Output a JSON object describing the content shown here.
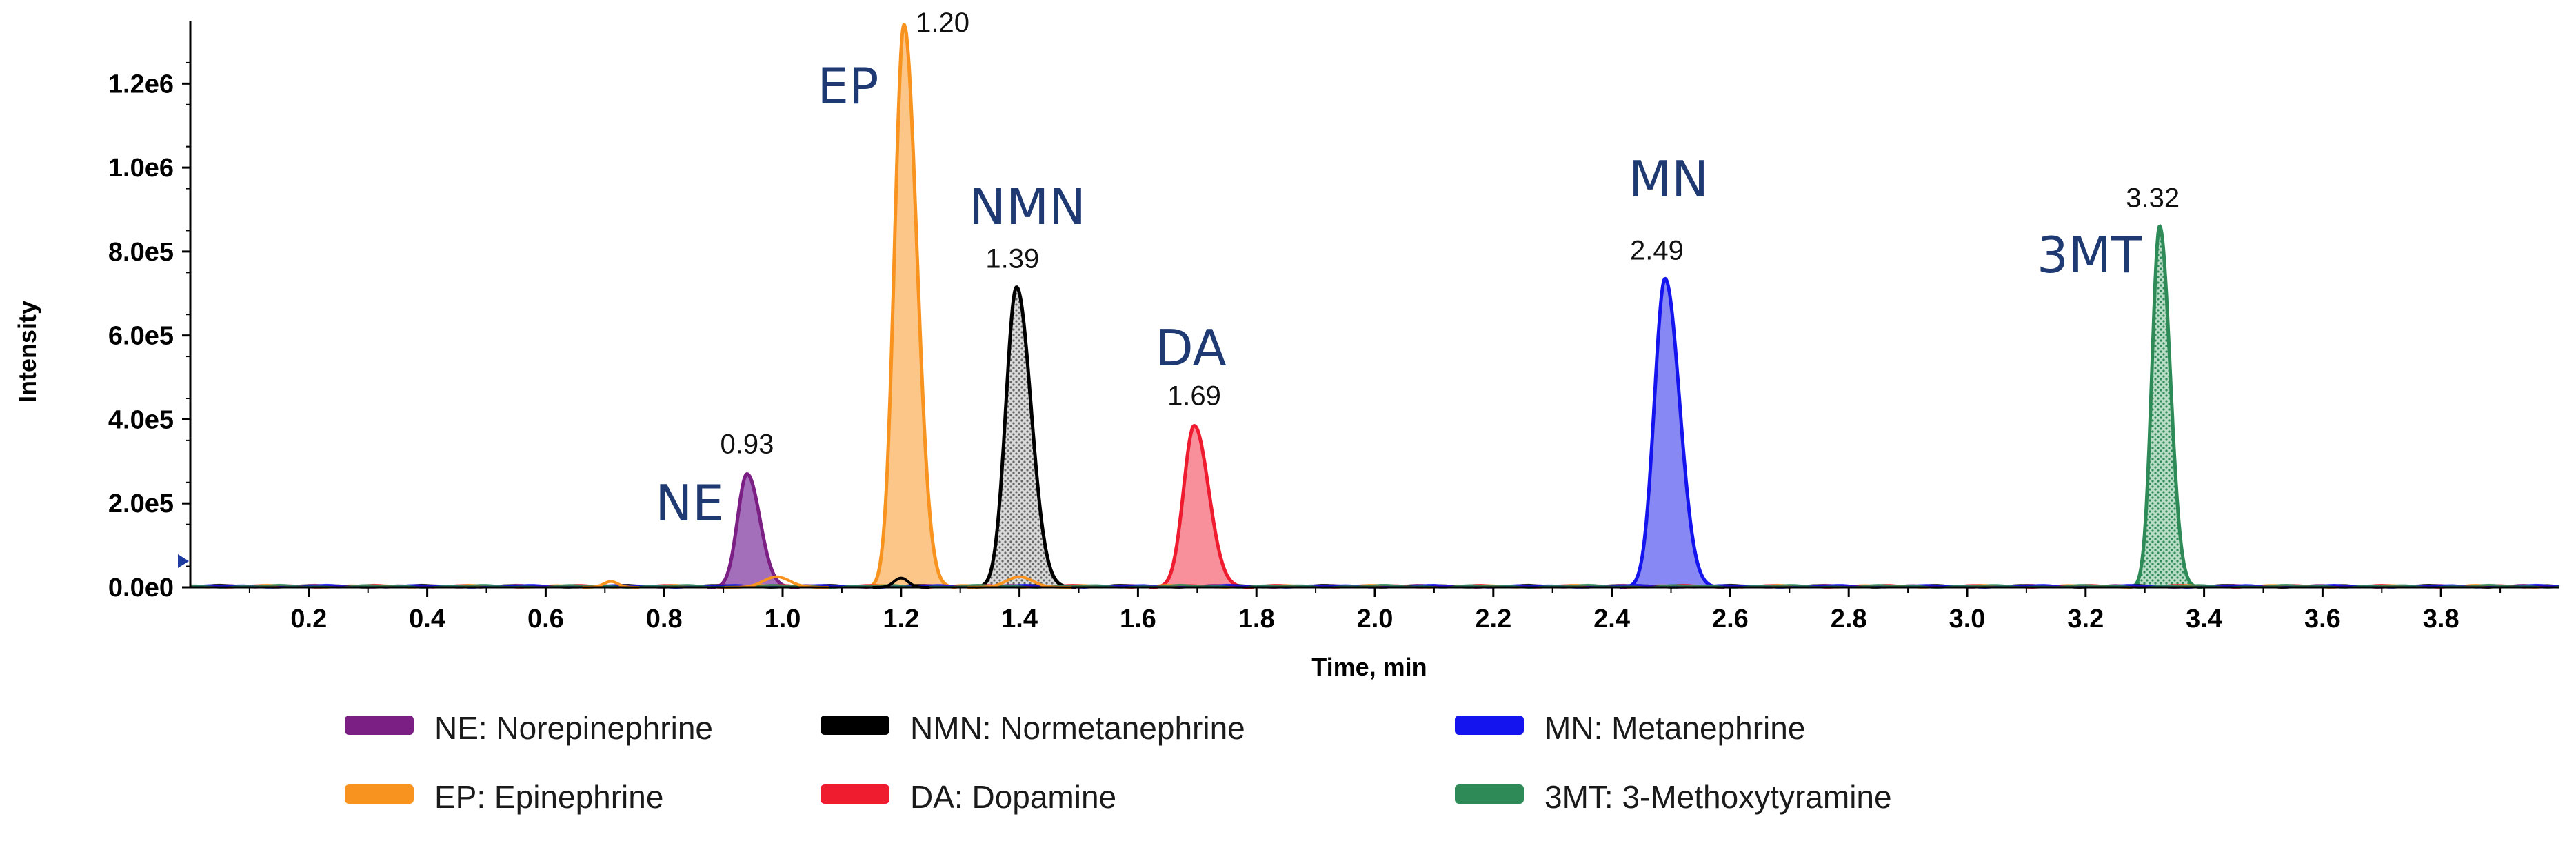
{
  "chart_data": {
    "type": "line",
    "subtype": "chromatogram",
    "xlabel": "Time, min",
    "ylabel": "Intensity",
    "xlim": [
      0.0,
      4.0
    ],
    "ylim": [
      0,
      1350000
    ],
    "x_ticks": [
      0.2,
      0.4,
      0.6,
      0.8,
      1.0,
      1.2,
      1.4,
      1.6,
      1.8,
      2.0,
      2.2,
      2.4,
      2.6,
      2.8,
      3.0,
      3.2,
      3.4,
      3.6,
      3.8
    ],
    "x_tick_labels": [
      "0.2",
      "0.4",
      "0.6",
      "0.8",
      "1.0",
      "1.2",
      "1.4",
      "1.6",
      "1.8",
      "2.0",
      "2.2",
      "2.4",
      "2.6",
      "2.8",
      "3.0",
      "3.2",
      "3.4",
      "3.6",
      "3.8"
    ],
    "y_ticks": [
      0,
      200000,
      400000,
      600000,
      800000,
      1000000,
      1200000
    ],
    "y_tick_labels": [
      "0.0e0",
      "2.0e5",
      "4.0e5",
      "6.0e5",
      "8.0e5",
      "1.0e6",
      "1.2e6"
    ],
    "grid": false,
    "legend_position": "bottom",
    "series": [
      {
        "id": "ne",
        "name": "NE: Norepinephrine",
        "short": "NE",
        "color": "#7b1f84",
        "fill": "#9a5fb2",
        "pattern": false,
        "rt": 0.93,
        "rt_label": "0.93",
        "peak_center": 0.94,
        "peak_height": 270000,
        "sigma": 0.016
      },
      {
        "id": "ep",
        "name": "EP: Epinephrine",
        "short": "EP",
        "color": "#f7931e",
        "fill": "#fbc07a",
        "pattern": false,
        "rt": 1.2,
        "rt_label": "1.20",
        "peak_center": 1.205,
        "peak_height": 1340000,
        "sigma": 0.016
      },
      {
        "id": "nmn",
        "name": "NMN: Normetanephrine",
        "short": "NMN",
        "color": "#000000",
        "fill": "#cccccc",
        "pattern": true,
        "rt": 1.39,
        "rt_label": "1.39",
        "peak_center": 1.395,
        "peak_height": 715000,
        "sigma": 0.018
      },
      {
        "id": "da",
        "name": "DA: Dopamine",
        "short": "DA",
        "color": "#ee1c2e",
        "fill": "#f6848f",
        "pattern": false,
        "rt": 1.69,
        "rt_label": "1.69",
        "peak_center": 1.695,
        "peak_height": 385000,
        "sigma": 0.018
      },
      {
        "id": "mn",
        "name": "MN: Metanephrine",
        "short": "MN",
        "color": "#1414ee",
        "fill": "#7b7bf3",
        "pattern": false,
        "rt": 2.49,
        "rt_label": "2.49",
        "peak_center": 2.49,
        "peak_height": 735000,
        "sigma": 0.018
      },
      {
        "id": "3mt",
        "name": "3MT: 3-Methoxytyramine",
        "short": "3MT",
        "color": "#2e8b57",
        "fill": "#9fd1b3",
        "pattern": true,
        "rt": 3.32,
        "rt_label": "3.32",
        "peak_center": 3.325,
        "peak_height": 860000,
        "sigma": 0.013
      }
    ]
  }
}
